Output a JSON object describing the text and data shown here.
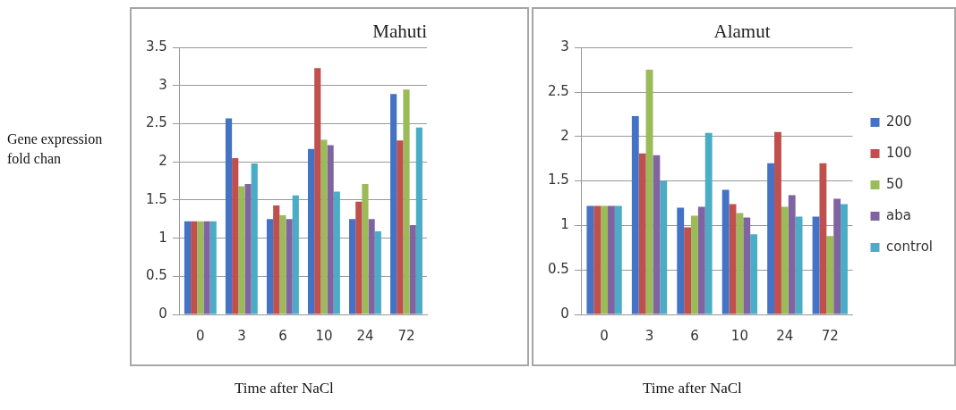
{
  "chart_data": [
    {
      "type": "bar",
      "title": "Mahuti",
      "ylabel": "Gene expression fold chan",
      "xlabel": "Time after NaCl",
      "categories": [
        "0",
        "3",
        "6",
        "10",
        "24",
        "72"
      ],
      "ylim": [
        0,
        3.5
      ],
      "yticks": [
        0,
        0.5,
        1,
        1.5,
        2,
        2.5,
        3,
        3.5
      ],
      "grid": "y",
      "legend": false,
      "series": [
        {
          "color": "#4472c4",
          "values": [
            1.22,
            2.57,
            1.25,
            2.17,
            1.25,
            2.89
          ]
        },
        {
          "color": "#c0504d",
          "values": [
            1.22,
            2.05,
            1.43,
            3.23,
            1.48,
            2.28
          ]
        },
        {
          "color": "#9bbb59",
          "values": [
            1.22,
            1.68,
            1.3,
            2.29,
            1.71,
            2.95
          ]
        },
        {
          "color": "#8064a2",
          "values": [
            1.22,
            1.71,
            1.25,
            2.22,
            1.25,
            1.17
          ]
        },
        {
          "color": "#4bacc6",
          "values": [
            1.22,
            1.98,
            1.56,
            1.61,
            1.09,
            2.45
          ]
        }
      ]
    },
    {
      "type": "bar",
      "title": "Alamut",
      "xlabel": "Time after NaCl",
      "categories": [
        "0",
        "3",
        "6",
        "10",
        "24",
        "72"
      ],
      "ylim": [
        0,
        3
      ],
      "yticks": [
        0,
        0.5,
        1,
        1.5,
        2,
        2.5,
        3
      ],
      "grid": "y",
      "legend": "right",
      "series": [
        {
          "name": "200",
          "color": "#4472c4",
          "values": [
            1.22,
            2.23,
            1.2,
            1.4,
            1.7,
            1.1
          ]
        },
        {
          "name": "100",
          "color": "#c0504d",
          "values": [
            1.22,
            1.81,
            0.98,
            1.24,
            2.05,
            1.7
          ]
        },
        {
          "name": "50",
          "color": "#9bbb59",
          "values": [
            1.22,
            2.75,
            1.11,
            1.14,
            1.21,
            0.88
          ]
        },
        {
          "name": "aba",
          "color": "#8064a2",
          "values": [
            1.22,
            1.79,
            1.21,
            1.09,
            1.34,
            1.3
          ]
        },
        {
          "name": "control",
          "color": "#4bacc6",
          "values": [
            1.22,
            1.5,
            2.04,
            0.9,
            1.1,
            1.24
          ]
        }
      ]
    }
  ]
}
